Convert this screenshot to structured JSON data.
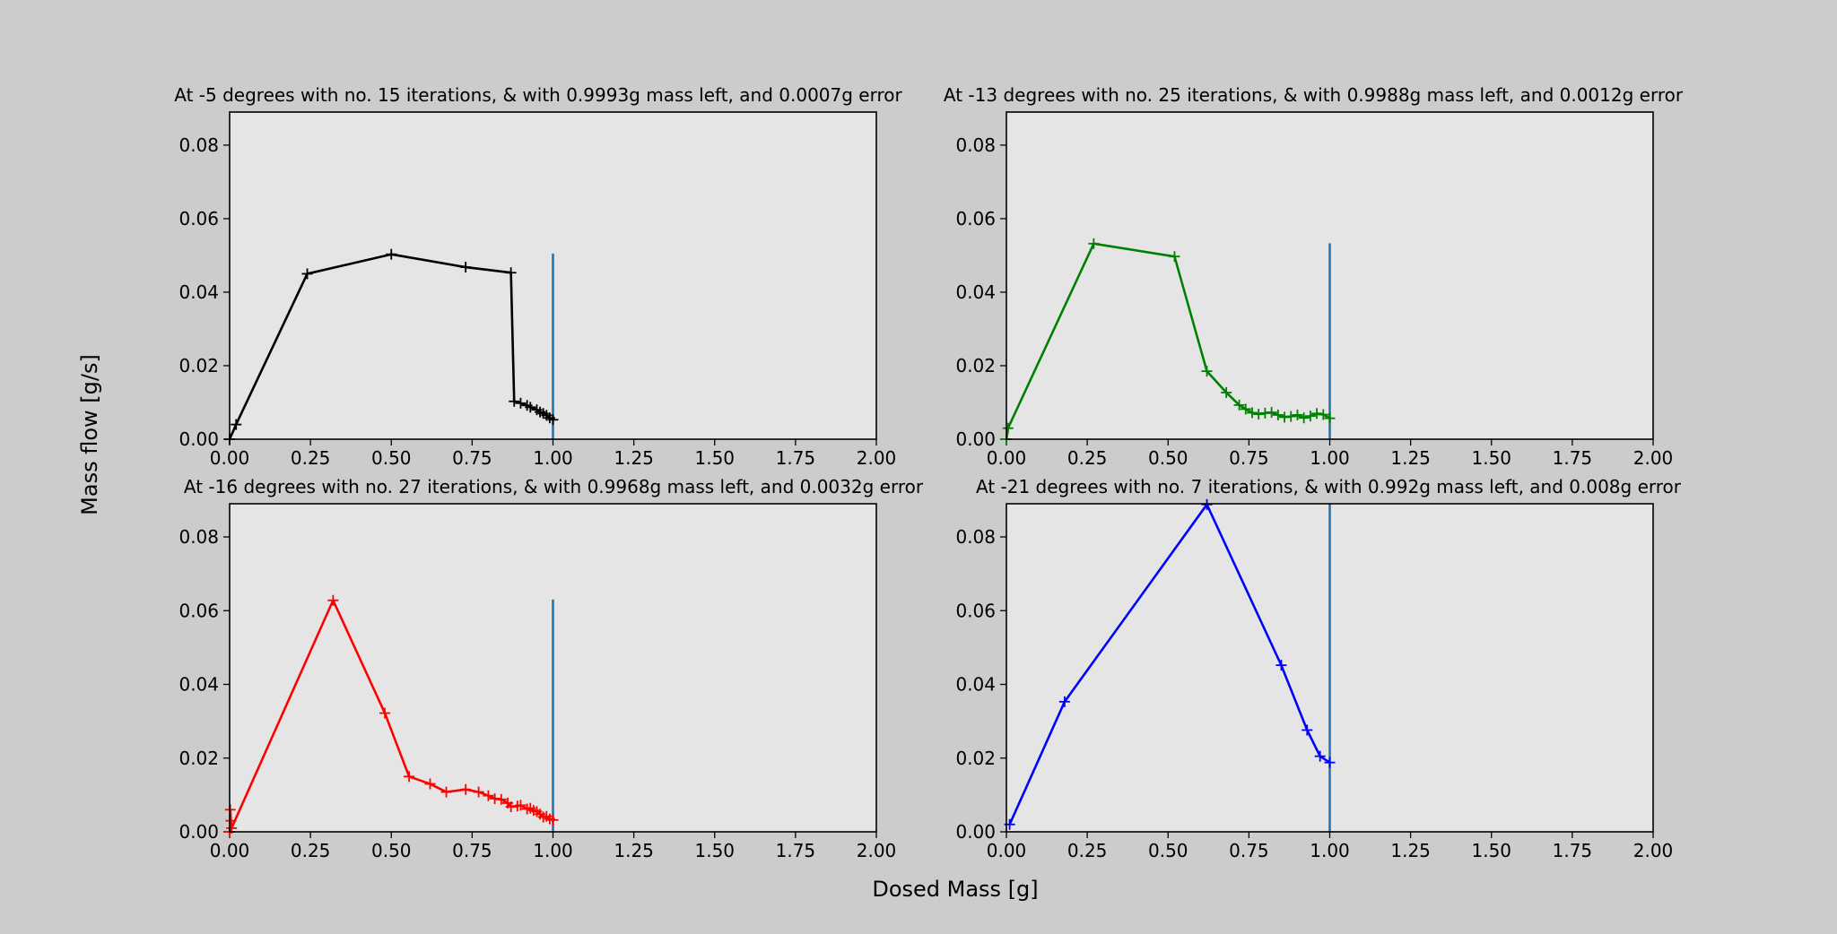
{
  "figure": {
    "ylabel": "Mass flow [g/s]",
    "xlabel": "Dosed Mass [g]",
    "background": "#cccccc",
    "axes_background": "#e5e5e5"
  },
  "chart_data": [
    {
      "type": "line",
      "title": "At -5 degrees with no. 15 iterations, & with 0.9993g mass left, and 0.0007g error",
      "xlim": [
        0,
        2.0
      ],
      "ylim": [
        0,
        0.089
      ],
      "xticks": [
        "0.00",
        "0.25",
        "0.50",
        "0.75",
        "1.00",
        "1.25",
        "1.50",
        "1.75",
        "2.00"
      ],
      "yticks": [
        "0.00",
        "0.02",
        "0.04",
        "0.06",
        "0.08"
      ],
      "series": [
        {
          "color": "#000000",
          "marker": "+",
          "x": [
            0.0,
            0.02,
            0.24,
            0.5,
            0.73,
            0.87,
            0.88,
            0.9,
            0.92,
            0.93,
            0.95,
            0.96,
            0.97,
            0.98,
            0.99,
            1.0
          ],
          "y": [
            0.0,
            0.004,
            0.045,
            0.0503,
            0.0468,
            0.0453,
            0.0103,
            0.0098,
            0.0092,
            0.0087,
            0.008,
            0.0074,
            0.007,
            0.0065,
            0.0058,
            0.0053
          ]
        }
      ],
      "vline": {
        "x": 1.0,
        "y0": 0,
        "y1": 0.0505,
        "color": "#1f77b4"
      }
    },
    {
      "type": "line",
      "title": "At -13 degrees with no. 25 iterations, & with 0.9988g mass left, and 0.0012g error",
      "xlim": [
        0,
        2.0
      ],
      "ylim": [
        0,
        0.089
      ],
      "xticks": [
        "0.00",
        "0.25",
        "0.50",
        "0.75",
        "1.00",
        "1.25",
        "1.50",
        "1.75",
        "2.00"
      ],
      "yticks": [
        "0.00",
        "0.02",
        "0.04",
        "0.06",
        "0.08"
      ],
      "series": [
        {
          "color": "#008000",
          "marker": "+",
          "x": [
            0.0,
            0.005,
            0.27,
            0.52,
            0.62,
            0.68,
            0.72,
            0.74,
            0.76,
            0.78,
            0.8,
            0.82,
            0.84,
            0.86,
            0.88,
            0.9,
            0.92,
            0.94,
            0.96,
            0.98,
            1.0
          ],
          "y": [
            0.0,
            0.003,
            0.0532,
            0.0497,
            0.0185,
            0.0127,
            0.0093,
            0.0082,
            0.0072,
            0.0068,
            0.0071,
            0.0073,
            0.0066,
            0.006,
            0.0062,
            0.0066,
            0.0058,
            0.0063,
            0.007,
            0.0067,
            0.0057
          ]
        }
      ],
      "vline": {
        "x": 1.0,
        "y0": 0,
        "y1": 0.0533,
        "color": "#1f77b4"
      }
    },
    {
      "type": "line",
      "title": "At -16 degrees with no. 27 iterations, & with 0.9968g mass left, and 0.0032g error",
      "xlim": [
        0,
        2.0
      ],
      "ylim": [
        0,
        0.089
      ],
      "xticks": [
        "0.00",
        "0.25",
        "0.50",
        "0.75",
        "1.00",
        "1.25",
        "1.50",
        "1.75",
        "2.00"
      ],
      "yticks": [
        "0.00",
        "0.02",
        "0.04",
        "0.06",
        "0.08"
      ],
      "series": [
        {
          "color": "#ff0000",
          "marker": "+",
          "x": [
            0.0,
            0.002,
            0.004,
            0.006,
            0.32,
            0.48,
            0.555,
            0.62,
            0.67,
            0.73,
            0.77,
            0.8,
            0.82,
            0.84,
            0.86,
            0.87,
            0.89,
            0.9,
            0.92,
            0.93,
            0.94,
            0.95,
            0.96,
            0.97,
            0.98,
            0.99,
            1.0
          ],
          "y": [
            0.0,
            0.006,
            0.003,
            0.001,
            0.0628,
            0.0322,
            0.015,
            0.013,
            0.0108,
            0.0115,
            0.0108,
            0.0098,
            0.009,
            0.0088,
            0.0078,
            0.0068,
            0.007,
            0.0072,
            0.0062,
            0.0064,
            0.0058,
            0.0055,
            0.0048,
            0.004,
            0.0042,
            0.0035,
            0.0032
          ]
        }
      ],
      "vline": {
        "x": 1.0,
        "y0": 0,
        "y1": 0.063,
        "color": "#1f77b4"
      }
    },
    {
      "type": "line",
      "title": "At -21 degrees with no. 7 iterations, & with 0.992g mass left, and 0.008g error",
      "xlim": [
        0,
        2.0
      ],
      "ylim": [
        0,
        0.089
      ],
      "xticks": [
        "0.00",
        "0.25",
        "0.50",
        "0.75",
        "1.00",
        "1.25",
        "1.50",
        "1.75",
        "2.00"
      ],
      "yticks": [
        "0.00",
        "0.02",
        "0.04",
        "0.06",
        "0.08"
      ],
      "series": [
        {
          "color": "#0000ff",
          "marker": "+",
          "x": [
            0.01,
            0.18,
            0.62,
            0.85,
            0.93,
            0.97,
            1.0
          ],
          "y": [
            0.002,
            0.0353,
            0.0888,
            0.0452,
            0.0276,
            0.0205,
            0.0188
          ]
        }
      ],
      "vline": {
        "x": 1.0,
        "y0": 0,
        "y1": 0.089,
        "color": "#1f77b4"
      }
    }
  ]
}
